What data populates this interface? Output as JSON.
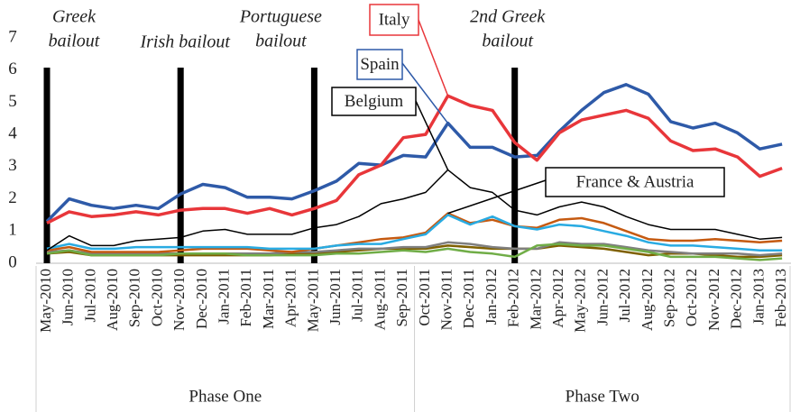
{
  "chart_data": {
    "type": "line",
    "categories": [
      "May-2010",
      "Jun-2010",
      "Jul-2010",
      "Aug-2010",
      "Sep-2010",
      "Oct-2010",
      "Nov-2010",
      "Dec-2010",
      "Jan-2011",
      "Feb-2011",
      "Mar-2011",
      "Apr-2011",
      "May-2011",
      "Jun-2011",
      "Jul-2011",
      "Aug-2011",
      "Sep-2011",
      "Oct-2011",
      "Nov-2011",
      "Dec-2011",
      "Jan-2012",
      "Feb-2012",
      "Mar-2012",
      "Apr-2012",
      "May-2012",
      "Jun-2012",
      "Jul-2012",
      "Aug-2012",
      "Sep-2012",
      "Oct-2012",
      "Nov-2012",
      "Dec-2012",
      "Jan-2013",
      "Feb-2013"
    ],
    "groups": [
      {
        "label": "Phase One",
        "start": "May-2010",
        "end": "Sep-2011"
      },
      {
        "label": "Phase Two",
        "start": "Oct-2011",
        "end": "Feb-2013"
      }
    ],
    "ylim": [
      0,
      7
    ],
    "yticks": [
      0,
      1,
      2,
      3,
      4,
      5,
      6,
      7
    ],
    "events": [
      {
        "label_lines": [
          "Greek",
          "bailout"
        ],
        "category": "May-2010"
      },
      {
        "label_lines": [
          "Irish bailout"
        ],
        "category": "Nov-2010"
      },
      {
        "label_lines": [
          "Portuguese",
          "bailout"
        ],
        "category": "May-2011"
      },
      {
        "label_lines": [
          "2nd Greek",
          "bailout"
        ],
        "category": "Feb-2012"
      }
    ],
    "annotations": [
      {
        "text": "France & Austria"
      }
    ],
    "series": [
      {
        "color": "#7f6000",
        "values": [
          0.3,
          0.35,
          0.25,
          0.25,
          0.25,
          0.25,
          0.25,
          0.25,
          0.25,
          0.25,
          0.25,
          0.3,
          0.3,
          0.35,
          0.4,
          0.45,
          0.45,
          0.45,
          0.55,
          0.5,
          0.45,
          0.45,
          0.45,
          0.55,
          0.5,
          0.45,
          0.35,
          0.25,
          0.3,
          0.3,
          0.25,
          0.2,
          0.2,
          0.25
        ]
      },
      {
        "color": "#7f7f7f",
        "values": [
          0.35,
          0.4,
          0.3,
          0.3,
          0.3,
          0.3,
          0.3,
          0.3,
          0.3,
          0.3,
          0.3,
          0.35,
          0.35,
          0.4,
          0.45,
          0.45,
          0.5,
          0.5,
          0.65,
          0.6,
          0.5,
          0.45,
          0.45,
          0.65,
          0.6,
          0.6,
          0.5,
          0.4,
          0.35,
          0.3,
          0.3,
          0.3,
          0.25,
          0.3
        ]
      },
      {
        "color": "#70ad47",
        "values": [
          0.3,
          0.4,
          0.25,
          0.25,
          0.25,
          0.25,
          0.3,
          0.3,
          0.3,
          0.25,
          0.25,
          0.25,
          0.25,
          0.3,
          0.3,
          0.35,
          0.4,
          0.35,
          0.45,
          0.35,
          0.3,
          0.2,
          0.55,
          0.6,
          0.55,
          0.55,
          0.45,
          0.35,
          0.2,
          0.2,
          0.2,
          0.15,
          0.1,
          0.15
        ]
      },
      {
        "color": "#c55a11",
        "values": [
          0.4,
          0.5,
          0.35,
          0.35,
          0.35,
          0.35,
          0.4,
          0.45,
          0.45,
          0.45,
          0.4,
          0.35,
          0.45,
          0.55,
          0.65,
          0.75,
          0.8,
          0.95,
          1.55,
          1.25,
          1.35,
          1.15,
          1.1,
          1.35,
          1.4,
          1.25,
          1.0,
          0.75,
          0.7,
          0.7,
          0.75,
          0.7,
          0.65,
          0.7
        ]
      },
      {
        "color": "#29abe2",
        "values": [
          0.45,
          0.6,
          0.45,
          0.45,
          0.5,
          0.5,
          0.5,
          0.5,
          0.5,
          0.5,
          0.45,
          0.45,
          0.45,
          0.55,
          0.6,
          0.6,
          0.75,
          0.9,
          1.5,
          1.2,
          1.45,
          1.15,
          1.05,
          1.2,
          1.15,
          1.0,
          0.85,
          0.65,
          0.55,
          0.55,
          0.5,
          0.45,
          0.4,
          0.4
        ]
      },
      {
        "name": "Belgium",
        "color": "#000000",
        "values": [
          0.4,
          0.85,
          0.55,
          0.55,
          0.7,
          0.75,
          0.8,
          1.0,
          1.05,
          0.9,
          0.9,
          0.9,
          1.1,
          1.2,
          1.45,
          1.85,
          2.0,
          2.2,
          2.9,
          2.35,
          2.2,
          1.65,
          1.5,
          1.75,
          1.9,
          1.75,
          1.45,
          1.2,
          1.05,
          1.05,
          1.05,
          0.9,
          0.75,
          0.8
        ]
      },
      {
        "name": "Spain",
        "color": "#2e5aa8",
        "values": [
          1.3,
          2.0,
          1.8,
          1.7,
          1.8,
          1.7,
          2.15,
          2.45,
          2.35,
          2.05,
          2.05,
          2.0,
          2.25,
          2.55,
          3.1,
          3.05,
          3.35,
          3.3,
          4.35,
          3.6,
          3.6,
          3.3,
          3.35,
          4.1,
          4.75,
          5.3,
          5.55,
          5.25,
          4.4,
          4.2,
          4.35,
          4.05,
          3.55,
          3.7
        ]
      },
      {
        "name": "Italy",
        "color": "#e8363a",
        "values": [
          1.25,
          1.6,
          1.45,
          1.5,
          1.6,
          1.5,
          1.65,
          1.7,
          1.7,
          1.55,
          1.7,
          1.5,
          1.7,
          1.95,
          2.75,
          3.05,
          3.9,
          4.0,
          5.2,
          4.9,
          4.75,
          3.75,
          3.2,
          4.05,
          4.45,
          4.6,
          4.75,
          4.5,
          3.8,
          3.5,
          3.55,
          3.3,
          2.7,
          2.95
        ]
      }
    ]
  }
}
